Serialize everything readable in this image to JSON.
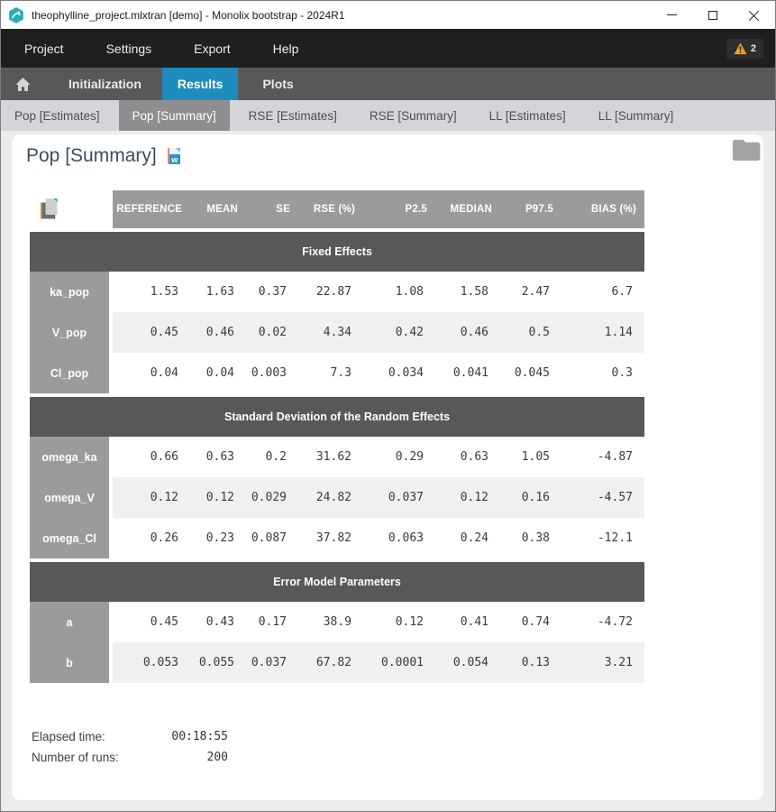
{
  "window": {
    "title": "theophylline_project.mlxtran [demo]  - Monolix bootstrap - 2024R1"
  },
  "menubar": {
    "items": [
      "Project",
      "Settings",
      "Export",
      "Help"
    ],
    "warning_count": "2"
  },
  "navbar": {
    "items": [
      "Initialization",
      "Results",
      "Plots"
    ],
    "active": "Results"
  },
  "subtabs": {
    "items": [
      "Pop [Estimates]",
      "Pop [Summary]",
      "RSE [Estimates]",
      "RSE [Summary]",
      "LL [Estimates]",
      "LL [Summary]"
    ],
    "active": "Pop [Summary]"
  },
  "page": {
    "title": "Pop [Summary]"
  },
  "icons": {
    "word_letter": "w"
  },
  "table": {
    "columns": [
      "REFERENCE",
      "MEAN",
      "SE",
      "RSE (%)",
      "P2.5",
      "MEDIAN",
      "P97.5",
      "BIAS (%)"
    ],
    "sections": [
      {
        "title": "Fixed Effects",
        "rows": [
          {
            "name": "ka_pop",
            "values": [
              "1.53",
              "1.63",
              "0.37",
              "22.87",
              "1.08",
              "1.58",
              "2.47",
              "6.7"
            ]
          },
          {
            "name": "V_pop",
            "values": [
              "0.45",
              "0.46",
              "0.02",
              "4.34",
              "0.42",
              "0.46",
              "0.5",
              "1.14"
            ]
          },
          {
            "name": "Cl_pop",
            "values": [
              "0.04",
              "0.04",
              "0.003",
              "7.3",
              "0.034",
              "0.041",
              "0.045",
              "0.3"
            ]
          }
        ]
      },
      {
        "title": "Standard Deviation of the Random Effects",
        "rows": [
          {
            "name": "omega_ka",
            "values": [
              "0.66",
              "0.63",
              "0.2",
              "31.62",
              "0.29",
              "0.63",
              "1.05",
              "-4.87"
            ]
          },
          {
            "name": "omega_V",
            "values": [
              "0.12",
              "0.12",
              "0.029",
              "24.82",
              "0.037",
              "0.12",
              "0.16",
              "-4.57"
            ]
          },
          {
            "name": "omega_Cl",
            "values": [
              "0.26",
              "0.23",
              "0.087",
              "37.82",
              "0.063",
              "0.24",
              "0.38",
              "-12.1"
            ]
          }
        ]
      },
      {
        "title": "Error Model Parameters",
        "rows": [
          {
            "name": "a",
            "values": [
              "0.45",
              "0.43",
              "0.17",
              "38.9",
              "0.12",
              "0.41",
              "0.74",
              "-4.72"
            ]
          },
          {
            "name": "b",
            "values": [
              "0.053",
              "0.055",
              "0.037",
              "67.82",
              "0.0001",
              "0.054",
              "0.13",
              "3.21"
            ]
          }
        ]
      }
    ]
  },
  "footer": {
    "elapsed_label": "Elapsed time:",
    "elapsed_value": "00:18:55",
    "runs_label": "Number of runs:",
    "runs_value": "200"
  },
  "colors": {
    "accent_blue": "#1e8dbe",
    "warning_orange": "#f09d1e",
    "header_gray": "#9a9b9c",
    "band_gray": "#58585a",
    "word_icon_blue": "#2e95c6"
  }
}
